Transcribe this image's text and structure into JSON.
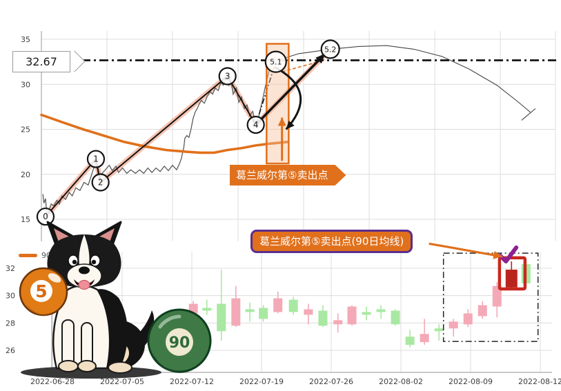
{
  "price_flag": {
    "value": "32.67"
  },
  "banner_top": {
    "text": "葛兰威尔第⑤卖出点"
  },
  "banner_bottom": {
    "text": "葛兰威尔第⑤卖出点(90日均线)"
  },
  "legend": {
    "label": "90 ma"
  },
  "decor": {
    "ball5": "5",
    "ball90": "90"
  },
  "colors": {
    "accent_orange": "#E0701C",
    "salmon_band": "rgba(240,138,102,0.5)",
    "rect_fill": "rgba(245,190,150,0.42)",
    "price_gray": "#5a5a5a",
    "trend_black": "#141414",
    "grid": "#dcdcdc",
    "spine": "#a9a9a9",
    "tick_text": "#3d3d3d",
    "candle_up": "#a9e8a2",
    "candle_down": "#f4a9b6",
    "candle_dark": "#b9251c",
    "red_box": "#c8281e",
    "check_purple": "#8E2190",
    "projection": "#444444"
  },
  "chart_data": [
    {
      "id": "main_line_chart",
      "type": "line",
      "title": "",
      "y_ticks": [
        35,
        30,
        25,
        20,
        15
      ],
      "ylim": [
        12.5,
        36.0
      ],
      "xlim": [
        0,
        100
      ],
      "grid": true,
      "hline": {
        "value": 32.67,
        "style": "dashdot",
        "label": "32.67"
      },
      "price_line": [
        [
          0.3,
          17.8
        ],
        [
          0.5,
          16.8
        ],
        [
          0.8,
          17.3
        ],
        [
          1.1,
          15.2
        ],
        [
          1.3,
          15.8
        ],
        [
          1.9,
          16.7
        ],
        [
          2.4,
          16.5
        ],
        [
          3.0,
          17.1
        ],
        [
          3.5,
          16.7
        ],
        [
          4.0,
          17.6
        ],
        [
          4.7,
          17.2
        ],
        [
          5.4,
          18.0
        ],
        [
          6.0,
          17.6
        ],
        [
          6.7,
          18.5
        ],
        [
          7.5,
          18.2
        ],
        [
          8.3,
          19.1
        ],
        [
          9.1,
          18.8
        ],
        [
          9.9,
          20.2
        ],
        [
          10.5,
          21.3
        ],
        [
          10.9,
          20.5
        ],
        [
          11.3,
          19.3
        ],
        [
          11.8,
          20.1
        ],
        [
          12.3,
          20.4
        ],
        [
          13.2,
          21.0
        ],
        [
          13.8,
          20.4
        ],
        [
          14.5,
          20.9
        ],
        [
          15.0,
          20.2
        ],
        [
          15.8,
          20.7
        ],
        [
          16.6,
          20.1
        ],
        [
          17.4,
          20.5
        ],
        [
          18.3,
          20.1
        ],
        [
          19.1,
          20.5
        ],
        [
          19.9,
          20.1
        ],
        [
          20.7,
          20.7
        ],
        [
          21.5,
          20.2
        ],
        [
          22.3,
          20.7
        ],
        [
          23.1,
          20.3
        ],
        [
          23.9,
          20.9
        ],
        [
          24.7,
          20.4
        ],
        [
          25.5,
          21.0
        ],
        [
          26.3,
          20.5
        ],
        [
          26.8,
          21.1
        ],
        [
          27.2,
          21.7
        ],
        [
          27.7,
          23.0
        ],
        [
          27.9,
          24.0
        ],
        [
          28.3,
          24.3
        ],
        [
          28.7,
          24.1
        ],
        [
          29.1,
          25.0
        ],
        [
          29.5,
          26.2
        ],
        [
          29.9,
          26.9
        ],
        [
          30.3,
          27.3
        ],
        [
          30.7,
          27.8
        ],
        [
          31.1,
          28.2
        ],
        [
          31.7,
          27.9
        ],
        [
          32.2,
          28.6
        ],
        [
          32.8,
          29.2
        ],
        [
          33.3,
          28.9
        ],
        [
          33.8,
          29.6
        ],
        [
          34.4,
          29.3
        ],
        [
          34.9,
          30.2
        ],
        [
          35.4,
          29.9
        ],
        [
          36.0,
          30.7
        ],
        [
          36.2,
          30.8
        ],
        [
          36.5,
          29.9
        ],
        [
          36.9,
          30.4
        ],
        [
          37.3,
          28.9
        ],
        [
          37.9,
          29.6
        ],
        [
          38.4,
          28.0
        ],
        [
          38.9,
          28.6
        ],
        [
          39.5,
          27.3
        ],
        [
          40.0,
          27.7
        ],
        [
          40.5,
          26.5
        ],
        [
          41.1,
          27.0
        ],
        [
          41.6,
          25.8
        ],
        [
          41.9,
          25.6
        ],
        [
          42.3,
          26.5
        ],
        [
          42.7,
          27.5
        ],
        [
          43.1,
          28.5
        ],
        [
          43.5,
          29.6
        ],
        [
          43.9,
          30.6
        ],
        [
          44.3,
          31.5
        ],
        [
          44.7,
          32.0
        ],
        [
          45.1,
          32.4
        ],
        [
          45.5,
          32.5
        ]
      ],
      "ma90_line": [
        [
          0,
          26.6
        ],
        [
          4,
          25.8
        ],
        [
          8.1,
          25.0
        ],
        [
          12.1,
          24.3
        ],
        [
          16.1,
          23.6
        ],
        [
          20.1,
          23.1
        ],
        [
          24.2,
          22.7
        ],
        [
          28.2,
          22.5
        ],
        [
          30.9,
          22.4
        ],
        [
          33.6,
          22.4
        ],
        [
          36.2,
          22.7
        ],
        [
          38.9,
          22.9
        ],
        [
          41.6,
          23.2
        ],
        [
          44.3,
          23.4
        ],
        [
          47.9,
          23.6
        ]
      ],
      "trend_polyline": [
        [
          0.8,
          15.3
        ],
        [
          10.6,
          21.7
        ],
        [
          11.5,
          19.1
        ],
        [
          36.2,
          30.9
        ],
        [
          41.7,
          25.5
        ]
      ],
      "salmon_band": [
        [
          0.8,
          15.3
        ],
        [
          10.6,
          21.7
        ],
        [
          11.5,
          19.1
        ],
        [
          36.2,
          30.9
        ],
        [
          41.7,
          25.5
        ],
        [
          56.2,
          33.9
        ]
      ],
      "thick_arrow": [
        [
          41.7,
          25.5
        ],
        [
          55.2,
          33.4
        ]
      ],
      "dashdot_segment": [
        [
          41.7,
          25.5
        ],
        [
          45.6,
          32.5
        ]
      ],
      "orange_dashed_segment": [
        [
          46.8,
          31.4
        ],
        [
          55.2,
          32.7
        ]
      ],
      "projection_curve": [
        [
          45.6,
          32.6
        ],
        [
          50.0,
          33.4
        ],
        [
          56.2,
          33.9
        ],
        [
          61.7,
          34.2
        ],
        [
          67.1,
          34.3
        ],
        [
          72.5,
          33.9
        ],
        [
          77.9,
          33.1
        ],
        [
          83.2,
          31.7
        ],
        [
          88.6,
          29.9
        ],
        [
          92.6,
          28.1
        ],
        [
          95.1,
          26.9
        ]
      ],
      "projection_end_tick": [
        [
          93.4,
          26.0
        ],
        [
          96.1,
          27.3
        ]
      ],
      "highlight_rect": {
        "x0": 43.8,
        "x1": 48.1,
        "y0": 21.2,
        "y1": 34.5
      },
      "up_arrow": {
        "x": 46.8,
        "y0": 21.5,
        "y1": 26.3
      },
      "curved_arrow": {
        "from": [
          45.4,
          31.9
        ],
        "ctrl": [
          54.2,
          29.2
        ],
        "to": [
          47.6,
          25.0
        ]
      },
      "markers": [
        {
          "label": "0",
          "x": 0.8,
          "y": 15.3,
          "r": 12
        },
        {
          "label": "1",
          "x": 10.6,
          "y": 21.7,
          "r": 12
        },
        {
          "label": "2",
          "x": 11.5,
          "y": 19.1,
          "r": 12
        },
        {
          "label": "3",
          "x": 36.2,
          "y": 30.9,
          "r": 12
        },
        {
          "label": "4",
          "x": 41.7,
          "y": 25.5,
          "r": 12
        },
        {
          "label": "5.1",
          "x": 45.6,
          "y": 32.5,
          "r": 15
        },
        {
          "label": "5.2",
          "x": 56.2,
          "y": 33.9,
          "r": 13
        }
      ]
    },
    {
      "id": "candlestick_chart",
      "type": "candlestick",
      "y_ticks": [
        32,
        30,
        28,
        26
      ],
      "ylim": [
        24.4,
        33.2
      ],
      "x_ticks": [
        "2022-06-28",
        "2022-07-05",
        "2022-07-12",
        "2022-07-19",
        "2022-07-26",
        "2022-08-02",
        "2022-08-09",
        "2022-08-12"
      ],
      "legend": "90 ma",
      "candles": [
        {
          "x": 28.3,
          "o": 29.4,
          "h": 29.6,
          "l": 28.5,
          "c": 28.7
        },
        {
          "x": 31.0,
          "o": 28.9,
          "h": 29.7,
          "l": 28.6,
          "c": 29.1
        },
        {
          "x": 33.9,
          "o": 27.4,
          "h": 31.9,
          "l": 26.7,
          "c": 29.4
        },
        {
          "x": 36.8,
          "o": 29.8,
          "h": 30.7,
          "l": 27.7,
          "c": 27.8
        },
        {
          "x": 39.6,
          "o": 28.8,
          "h": 29.5,
          "l": 28.1,
          "c": 29.0
        },
        {
          "x": 42.3,
          "o": 28.3,
          "h": 29.3,
          "l": 28.1,
          "c": 29.1
        },
        {
          "x": 45.2,
          "o": 29.8,
          "h": 30.3,
          "l": 28.7,
          "c": 28.8
        },
        {
          "x": 48.3,
          "o": 28.8,
          "h": 29.9,
          "l": 28.6,
          "c": 29.7
        },
        {
          "x": 51.3,
          "o": 29.0,
          "h": 29.4,
          "l": 27.9,
          "c": 28.6
        },
        {
          "x": 54.2,
          "o": 27.8,
          "h": 29.3,
          "l": 27.7,
          "c": 28.9
        },
        {
          "x": 57.2,
          "o": 28.2,
          "h": 28.7,
          "l": 27.3,
          "c": 27.9
        },
        {
          "x": 60.0,
          "o": 29.2,
          "h": 29.3,
          "l": 27.8,
          "c": 27.9
        },
        {
          "x": 62.9,
          "o": 28.6,
          "h": 29.2,
          "l": 28.2,
          "c": 28.8
        },
        {
          "x": 65.8,
          "o": 28.8,
          "h": 29.3,
          "l": 28.3,
          "c": 29.0
        },
        {
          "x": 68.7,
          "o": 27.9,
          "h": 29.0,
          "l": 27.8,
          "c": 28.9
        },
        {
          "x": 71.6,
          "o": 26.4,
          "h": 27.5,
          "l": 26.2,
          "c": 27.0
        },
        {
          "x": 74.5,
          "o": 27.2,
          "h": 28.3,
          "l": 26.4,
          "c": 26.6
        },
        {
          "x": 77.4,
          "o": 27.4,
          "h": 27.9,
          "l": 26.7,
          "c": 27.6
        },
        {
          "x": 80.3,
          "o": 28.1,
          "h": 28.3,
          "l": 27.0,
          "c": 27.6
        },
        {
          "x": 83.2,
          "o": 28.7,
          "h": 29.0,
          "l": 27.7,
          "c": 27.9
        },
        {
          "x": 86.1,
          "o": 29.3,
          "h": 29.6,
          "l": 28.3,
          "c": 28.5
        },
        {
          "x": 89.0,
          "o": 30.7,
          "h": 31.0,
          "l": 28.4,
          "c": 29.2
        },
        {
          "x": 91.9,
          "o": 31.9,
          "h": 32.5,
          "l": 30.5,
          "c": 30.6,
          "dark": true
        },
        {
          "x": 94.8,
          "o": 30.9,
          "h": 32.5,
          "l": 30.7,
          "c": 32.3
        }
      ],
      "dashed_box": {
        "x0": 78.3,
        "x1": 97.2,
        "y0": 26.65,
        "y1": 33.1
      },
      "red_box": {
        "x0": 89.5,
        "x1": 94.6,
        "y0": 30.49,
        "y1": 32.76
      },
      "check_mark": {
        "x": 91.2,
        "y": 33.06
      },
      "annotation_arrow": {
        "from": [
          75.4,
          33.8
        ],
        "to": [
          90.1,
          32.85
        ]
      }
    }
  ]
}
